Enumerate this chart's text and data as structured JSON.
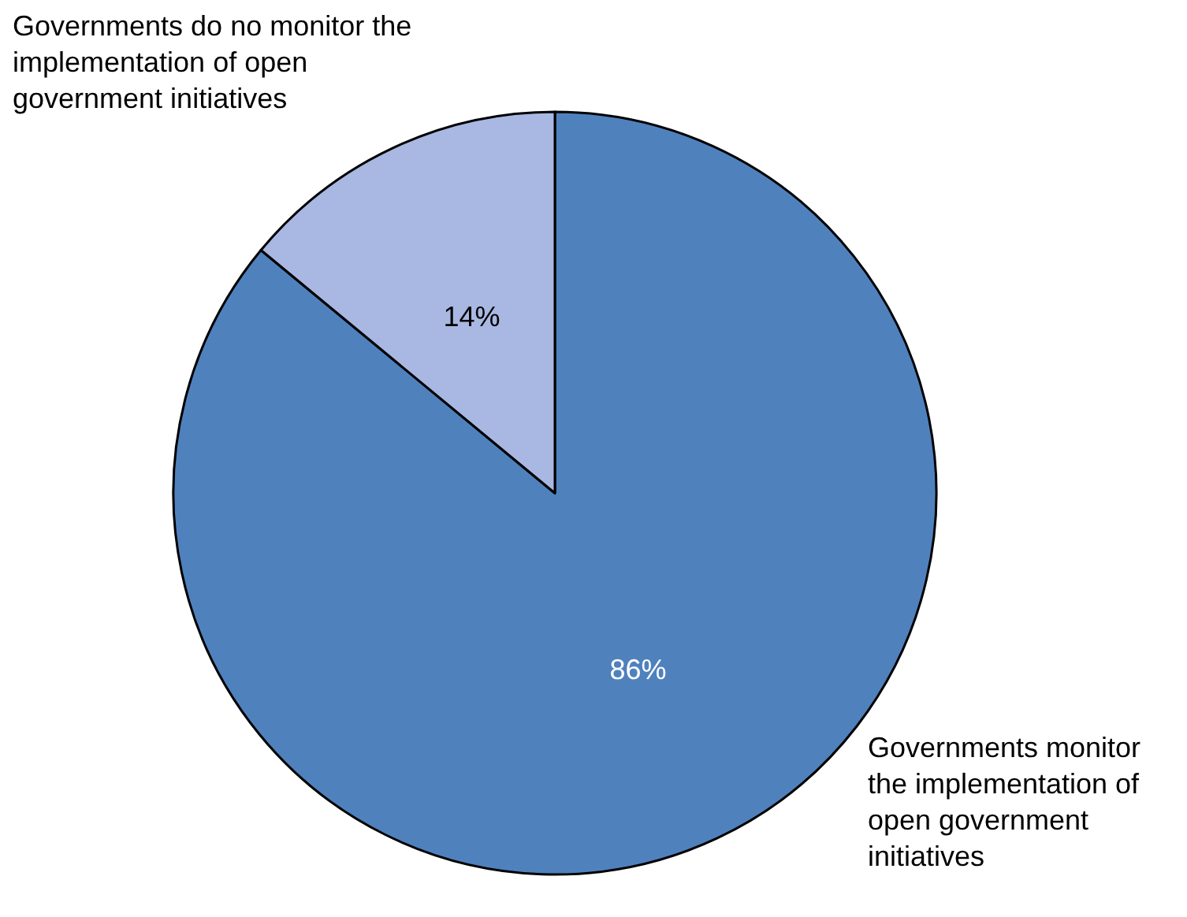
{
  "chart_data": {
    "type": "pie",
    "categories": [
      "Governments monitor the implementation of open government initiatives",
      "Governments do no monitor the implementation of open government initiatives"
    ],
    "values": [
      86,
      14
    ],
    "colors": [
      "#4f81bd",
      "#a9b8e2"
    ],
    "value_labels": [
      "86%",
      "14%"
    ],
    "legend": false
  }
}
